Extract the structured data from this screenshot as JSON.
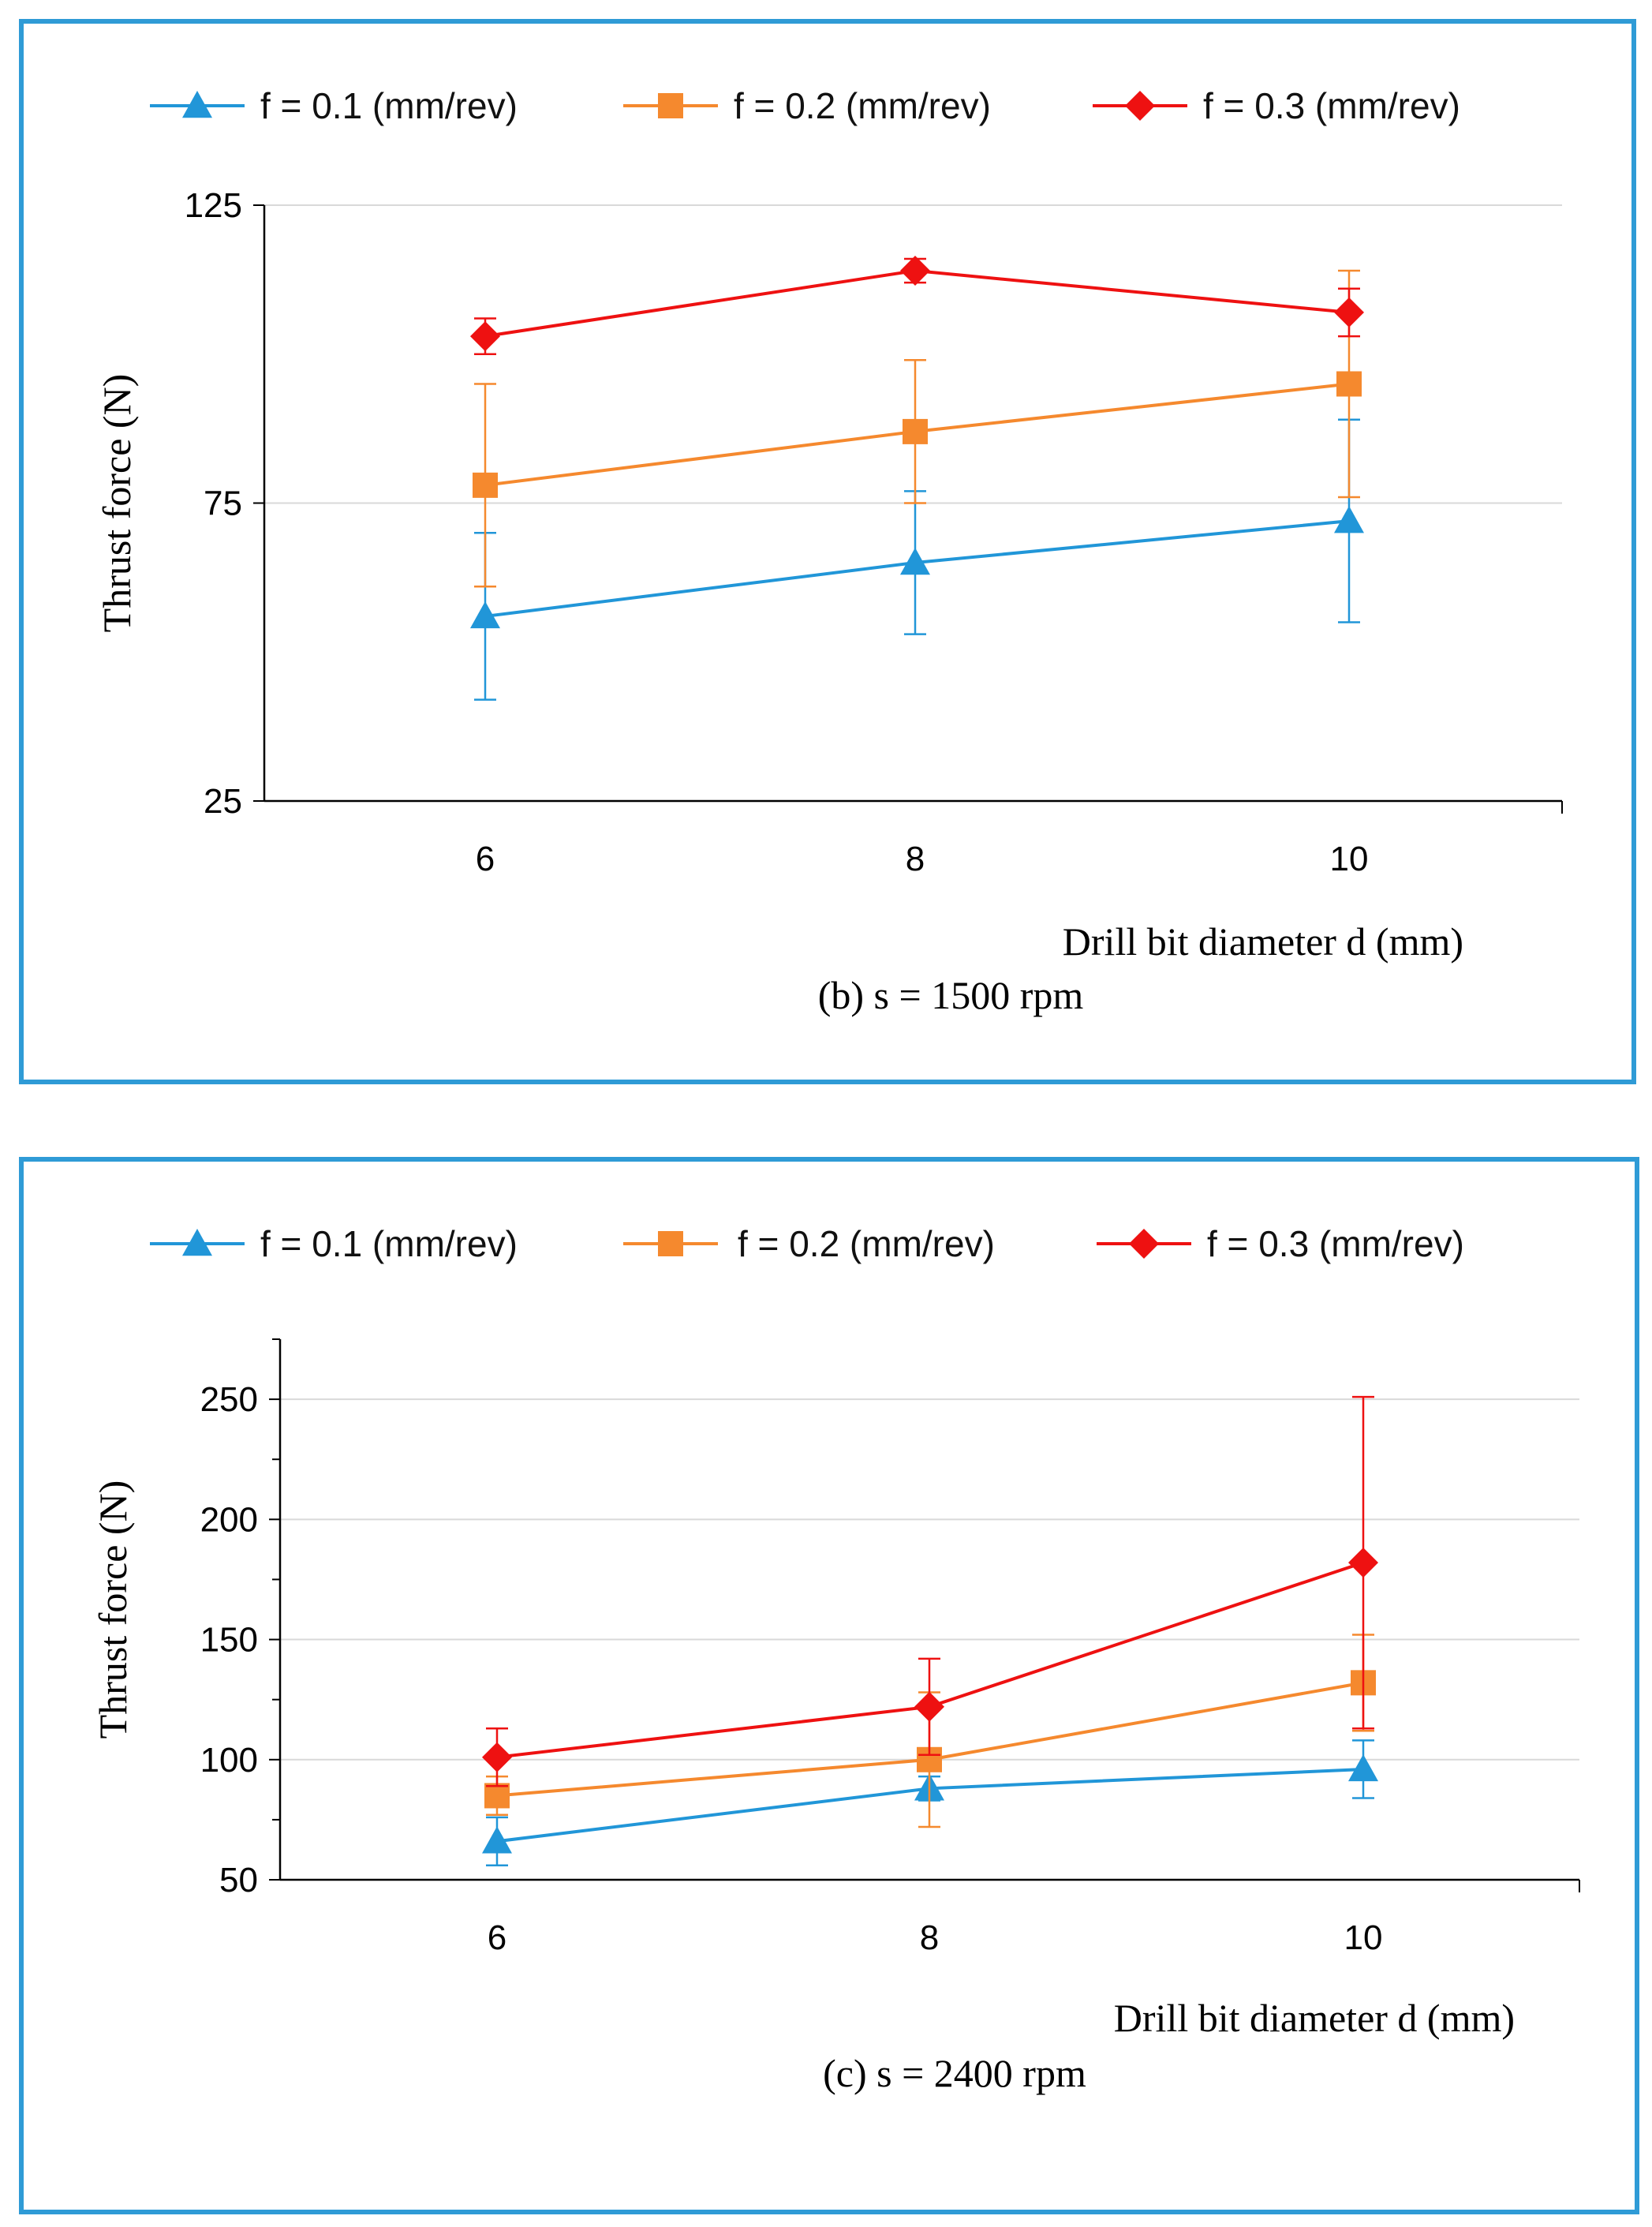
{
  "colors": {
    "frame": "#2f9bd6",
    "series": [
      "#2196d8",
      "#f5892e",
      "#ee1111"
    ],
    "grid": "#d9d9d9",
    "axis": "#000000"
  },
  "legend_labels": [
    "f = 0.1 (mm/rev)",
    "f = 0.2 (mm/rev)",
    "f = 0.3 (mm/rev)"
  ],
  "chart_data": [
    {
      "type": "line",
      "title": "(b) s =  1500 rpm",
      "xlabel": "Drill  bit diameter  d (mm)",
      "ylabel": "Thrust force (N)",
      "categories": [
        "6",
        "8",
        "10"
      ],
      "ylim": [
        25,
        125
      ],
      "yticks": [
        "25",
        "75",
        "125"
      ],
      "grid": true,
      "legend": "top",
      "series": [
        {
          "name": "f = 0.1 (mm/rev)",
          "marker": "triangle",
          "values": [
            56,
            65,
            72
          ],
          "err_low": [
            14,
            12,
            17
          ],
          "err_high": [
            14,
            12,
            17
          ]
        },
        {
          "name": "f = 0.2 (mm/rev)",
          "marker": "square",
          "values": [
            78,
            87,
            95
          ],
          "err_low": [
            17,
            12,
            19
          ],
          "err_high": [
            17,
            12,
            19
          ]
        },
        {
          "name": "f = 0.3 (mm/rev)",
          "marker": "diamond",
          "values": [
            103,
            114,
            107
          ],
          "err_low": [
            3,
            2,
            4
          ],
          "err_high": [
            3,
            2,
            4
          ]
        }
      ]
    },
    {
      "type": "line",
      "title": "(c)  s =  2400 rpm",
      "xlabel": "Drill  bit diameter  d (mm)",
      "ylabel": "Thrust force (N)",
      "categories": [
        "6",
        "8",
        "10"
      ],
      "ylim": [
        50,
        275
      ],
      "yticks": [
        "50",
        "100",
        "150",
        "200",
        "250"
      ],
      "grid": true,
      "legend": "top",
      "series": [
        {
          "name": "f = 0.1 (mm/rev)",
          "marker": "triangle",
          "values": [
            66,
            88,
            96
          ],
          "err_low": [
            10,
            5,
            12
          ],
          "err_high": [
            10,
            5,
            12
          ]
        },
        {
          "name": "f = 0.2 (mm/rev)",
          "marker": "square",
          "values": [
            85,
            100,
            132
          ],
          "err_low": [
            8,
            28,
            20
          ],
          "err_high": [
            8,
            28,
            20
          ]
        },
        {
          "name": "f = 0.3 (mm/rev)",
          "marker": "diamond",
          "values": [
            101,
            122,
            182
          ],
          "err_low": [
            12,
            20,
            69
          ],
          "err_high": [
            12,
            20,
            69
          ]
        }
      ]
    }
  ]
}
